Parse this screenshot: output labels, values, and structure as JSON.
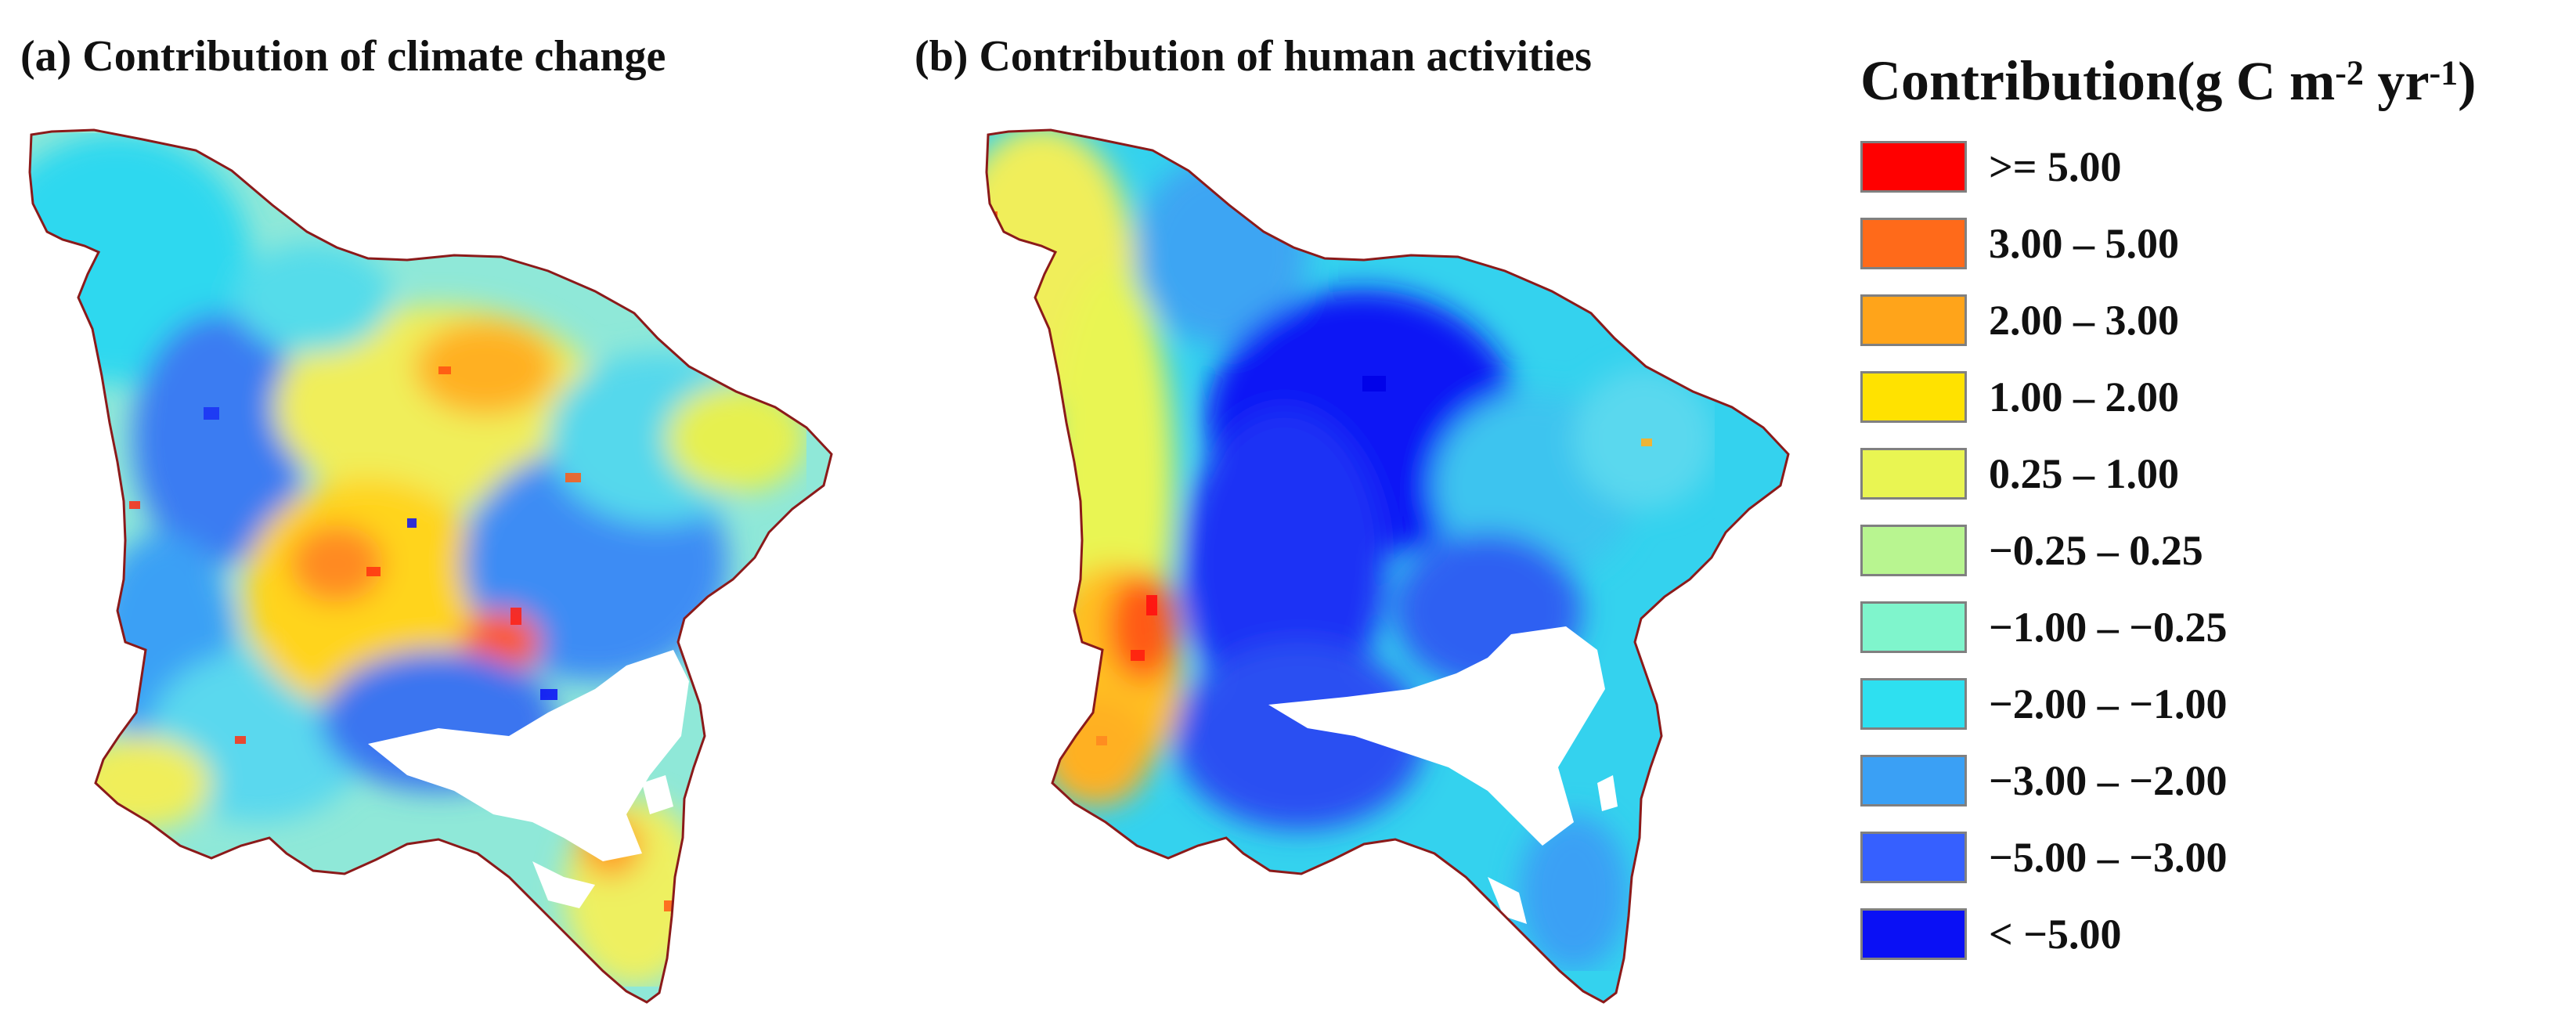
{
  "panels": [
    {
      "title": "(a) Contribution of climate change"
    },
    {
      "title": "(b)  Contribution of human activities"
    }
  ],
  "legend": {
    "title": "Contribution",
    "unit_prefix": "(g C m",
    "unit_sup1": "-2",
    "unit_mid": " yr",
    "unit_sup2": "-1",
    "unit_suffix": ")",
    "items": [
      {
        "label": ">= 5.00",
        "color": "#ff0000"
      },
      {
        "label": "3.00 – 5.00",
        "color": "#ff6a1a"
      },
      {
        "label": "2.00 – 3.00",
        "color": "#ffa41a"
      },
      {
        "label": "1.00 – 2.00",
        "color": "#ffe200"
      },
      {
        "label": "0.25 – 1.00",
        "color": "#e9f552"
      },
      {
        "label": "−0.25 – 0.25",
        "color": "#b8f590"
      },
      {
        "label": "−1.00 – −0.25",
        "color": "#7ff5cc"
      },
      {
        "label": "−2.00 – −1.00",
        "color": "#2ee0f0"
      },
      {
        "label": "−3.00 – −2.00",
        "color": "#3aa0f5"
      },
      {
        "label": "−5.00 – −3.00",
        "color": "#3660ff"
      },
      {
        "label": "< −5.00",
        "color": "#0a10f5"
      }
    ]
  }
}
